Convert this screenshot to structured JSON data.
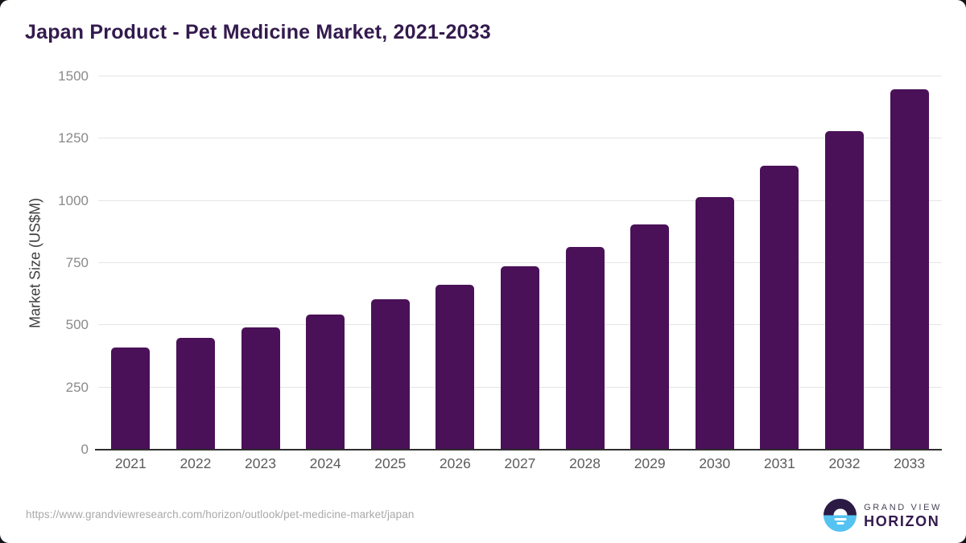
{
  "title": "Japan Product - Pet Medicine Market, 2021-2033",
  "chart_data": {
    "type": "bar",
    "categories": [
      "2021",
      "2022",
      "2023",
      "2024",
      "2025",
      "2026",
      "2027",
      "2028",
      "2029",
      "2030",
      "2031",
      "2032",
      "2033"
    ],
    "values": [
      410,
      449,
      492,
      544,
      605,
      664,
      737,
      815,
      906,
      1016,
      1140,
      1280,
      1448
    ],
    "title": "Japan Product - Pet Medicine Market, 2021-2033",
    "xlabel": "",
    "ylabel": "Market Size (US$M)",
    "ylim": [
      0,
      1500
    ],
    "yticks": [
      0,
      250,
      500,
      750,
      1000,
      1250,
      1500
    ],
    "grid": "horizontal",
    "legend": "none",
    "bar_color": "#4a1158"
  },
  "colors": {
    "title_text": "#331a4e",
    "bar": "#4a1158",
    "gridline": "#e5e5e5",
    "axis_line": "#2e2e2e",
    "tick_label": "#8a8a8a",
    "x_label": "#5c5c5c",
    "logo_top": "#2b1a44",
    "logo_bottom": "#55c3f1"
  },
  "footer": {
    "source_url": "https://www.grandviewresearch.com/horizon/outlook/pet-medicine-market/japan",
    "brand": {
      "line1": "GRAND VIEW",
      "line2": "HORIZON"
    }
  }
}
